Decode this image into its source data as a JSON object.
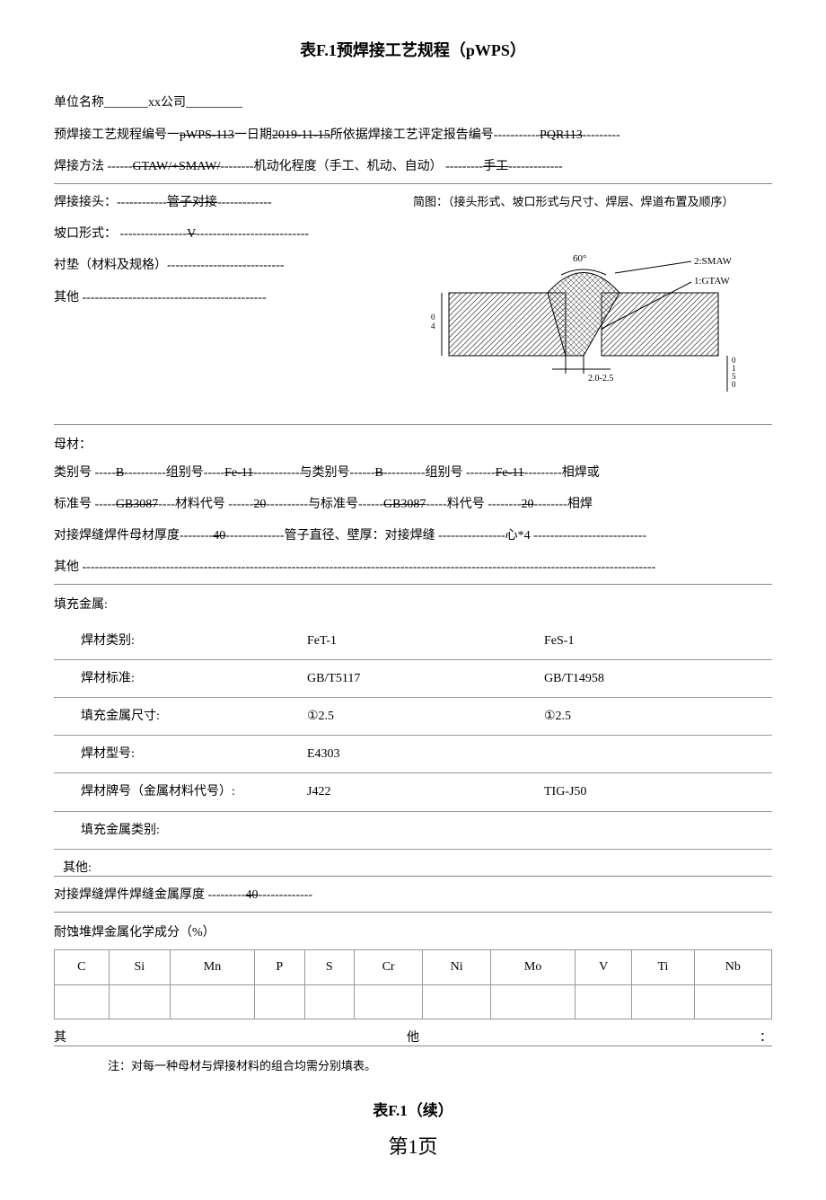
{
  "title": "表F.1预焊接工艺规程（pWPS）",
  "header": {
    "org_label": "单位名称",
    "org_fill": "_______",
    "org_value": "xx公司",
    "org_tail": "_________",
    "proc_no_label": "预焊接工艺规程编号一",
    "proc_no": "pWPS-113",
    "date_sep": "一日期 ",
    "date": "2019-11-15",
    "pqr_label": " 所依据焊接工艺评定报告编号-----------",
    "pqr_no": "PQR113",
    "pqr_tail": "---------",
    "method_label": "焊接方法 ------",
    "method": "GTAW/+SMAW/",
    "mech_label": " --------机动化程度（手工、机动、自动） ---------",
    "mech": "手工",
    "mech_tail": "-------------"
  },
  "joint": {
    "joint_label": "焊接接头：------------",
    "joint_value": "管子对接",
    "joint_tail": "-------------",
    "sketch_label": "简图：（接头形式、坡口形式与尺寸、焊层、焊道布置及顺序）",
    "groove_label": "坡口形式：  ----------------",
    "groove_value": "V",
    "groove_tail": "---------------------------",
    "pad_label": "衬垫（材料及规格）----------------------------",
    "other_label": "其他 --------------------------------------------"
  },
  "diagram": {
    "angle": "60°",
    "label2": "2:SMAW",
    "label1": "1:GTAW",
    "gap": "2.0-2.5",
    "h_left": "04",
    "h_right": "0150"
  },
  "base": {
    "base_label": "母材：",
    "cat_line_p1": "类别号 -----",
    "cat_v1": "B",
    "cat_line_p2": "----------组别号-----",
    "grp_v1": "Fe-11",
    "cat_line_p3": " -----------与类别号------",
    "cat_v2": "B",
    "cat_line_p4": "----------组别号 -------",
    "grp_v2": "Fe-11",
    "cat_line_p5": " ---------相焊或",
    "std_line_p1": "标准号 -----",
    "std_v1": "GB3087",
    "std_line_p2": " ----材料代号 ------",
    "mat_v1": "20",
    "std_line_p3": "----------与标准号------",
    "std_v2": "GB3087",
    "std_line_p4": " -----料代号 --------",
    "mat_v2": "20",
    "std_line_p5": "--------相焊",
    "thick_p1": "对接焊缝焊件母材厚度--------",
    "thick_v": "40",
    "thick_p2": "--------------管子直径、壁厚：对接焊缝 ----------------心*4 ---------------------------",
    "other": "其他 -----------------------------------------------------------------------------------------------------------------------------------------"
  },
  "filler": {
    "section": "填充金属:",
    "rows": [
      {
        "label": "焊材类别:",
        "c1": "FeT-1",
        "c2": "FeS-1"
      },
      {
        "label": "焊材标准:",
        "c1": "GB/T5117",
        "c2": "GB/T14958"
      },
      {
        "label": "填充金属尺寸:",
        "c1": "①2.5",
        "c2": "①2.5"
      },
      {
        "label": "焊材型号:",
        "c1": "E4303",
        "c2": ""
      },
      {
        "label": "焊材牌号（金属材料代号）:",
        "c1": "J422",
        "c2": "TIG-J50"
      },
      {
        "label": "填充金属类别:",
        "c1": "",
        "c2": ""
      }
    ],
    "other": "其他:",
    "thick_label": "对接焊缝焊件焊缝金属厚度 ---------",
    "thick_val": "40",
    "thick_tail": "-------------"
  },
  "chem": {
    "section": "耐蚀堆焊金属化学成分（%）",
    "headers": [
      "C",
      "Si",
      "Mn",
      "P",
      "S",
      "Cr",
      "Ni",
      "Mo",
      "V",
      "Ti",
      "Nb"
    ],
    "other_left": "其",
    "other_mid": "他",
    "other_right": "："
  },
  "note": "注：对每一种母材与焊接材料的组合均需分别填表。",
  "title2": "表F.1（续）",
  "pagenum": "第1页"
}
